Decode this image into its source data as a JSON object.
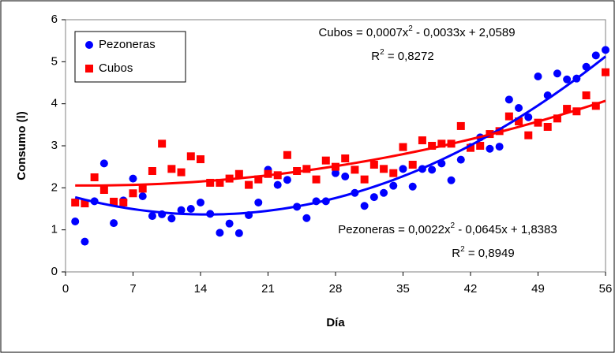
{
  "chart_data": {
    "type": "scatter",
    "x_label": "Día",
    "y_label": "Consumo (l)",
    "x": [
      1,
      2,
      3,
      4,
      5,
      6,
      7,
      8,
      9,
      10,
      11,
      12,
      13,
      14,
      15,
      16,
      17,
      18,
      19,
      20,
      21,
      22,
      23,
      24,
      25,
      26,
      27,
      28,
      29,
      30,
      31,
      32,
      33,
      34,
      35,
      36,
      37,
      38,
      39,
      40,
      41,
      42,
      43,
      44,
      45,
      46,
      47,
      48,
      49,
      50,
      51,
      52,
      53,
      54,
      55,
      56
    ],
    "xlim": [
      0,
      56
    ],
    "xticks": [
      0,
      7,
      14,
      21,
      28,
      35,
      42,
      49,
      56
    ],
    "ylim": [
      0,
      6
    ],
    "yticks": [
      0,
      1,
      2,
      3,
      4,
      5,
      6
    ],
    "legend": "top-left",
    "series": [
      {
        "name": "Pezoneras",
        "color": "#0000ff",
        "marker": "circle",
        "values": [
          1.2,
          0.72,
          1.68,
          2.58,
          1.16,
          1.7,
          2.22,
          1.8,
          1.33,
          1.37,
          1.27,
          1.47,
          1.5,
          1.65,
          1.38,
          0.93,
          1.15,
          0.92,
          1.35,
          1.65,
          2.43,
          2.07,
          2.19,
          1.55,
          1.28,
          1.68,
          1.68,
          2.35,
          2.27,
          1.88,
          1.57,
          1.78,
          1.88,
          2.05,
          2.45,
          2.03,
          2.45,
          2.43,
          2.58,
          2.18,
          2.67,
          2.97,
          3.2,
          2.93,
          2.98,
          4.1,
          3.9,
          3.68,
          4.65,
          4.2,
          4.72,
          4.58,
          4.6,
          4.88,
          5.15,
          5.28
        ],
        "trendline": {
          "coefficients": [
            0.0022,
            -0.0645,
            1.8383
          ],
          "equation": [
            "Pezoneras = 0,0022x",
            "2",
            " - 0,0645x + 1,8383"
          ],
          "r2": [
            "R",
            "2",
            " = 0,8949"
          ]
        }
      },
      {
        "name": "Cubos",
        "color": "#ff0000",
        "marker": "square",
        "values": [
          1.65,
          1.63,
          2.25,
          1.95,
          1.67,
          1.65,
          1.87,
          1.98,
          2.4,
          3.05,
          2.45,
          2.37,
          2.75,
          2.68,
          2.12,
          2.12,
          2.22,
          2.33,
          2.07,
          2.2,
          2.33,
          2.3,
          2.78,
          2.4,
          2.45,
          2.2,
          2.65,
          2.5,
          2.7,
          2.43,
          2.2,
          2.55,
          2.45,
          2.35,
          2.97,
          2.55,
          3.13,
          3.0,
          3.05,
          3.05,
          3.47,
          2.95,
          3.0,
          3.28,
          3.35,
          3.7,
          3.58,
          3.25,
          3.55,
          3.45,
          3.65,
          3.88,
          3.82,
          4.2,
          3.95,
          4.75
        ],
        "trendline": {
          "coefficients": [
            0.0007,
            -0.0033,
            2.0589
          ],
          "equation": [
            "Cubos = 0,0007x",
            "2",
            " - 0,0033x + 2,0589"
          ],
          "r2": [
            "R",
            "2",
            " = 0,8272"
          ]
        }
      }
    ]
  }
}
